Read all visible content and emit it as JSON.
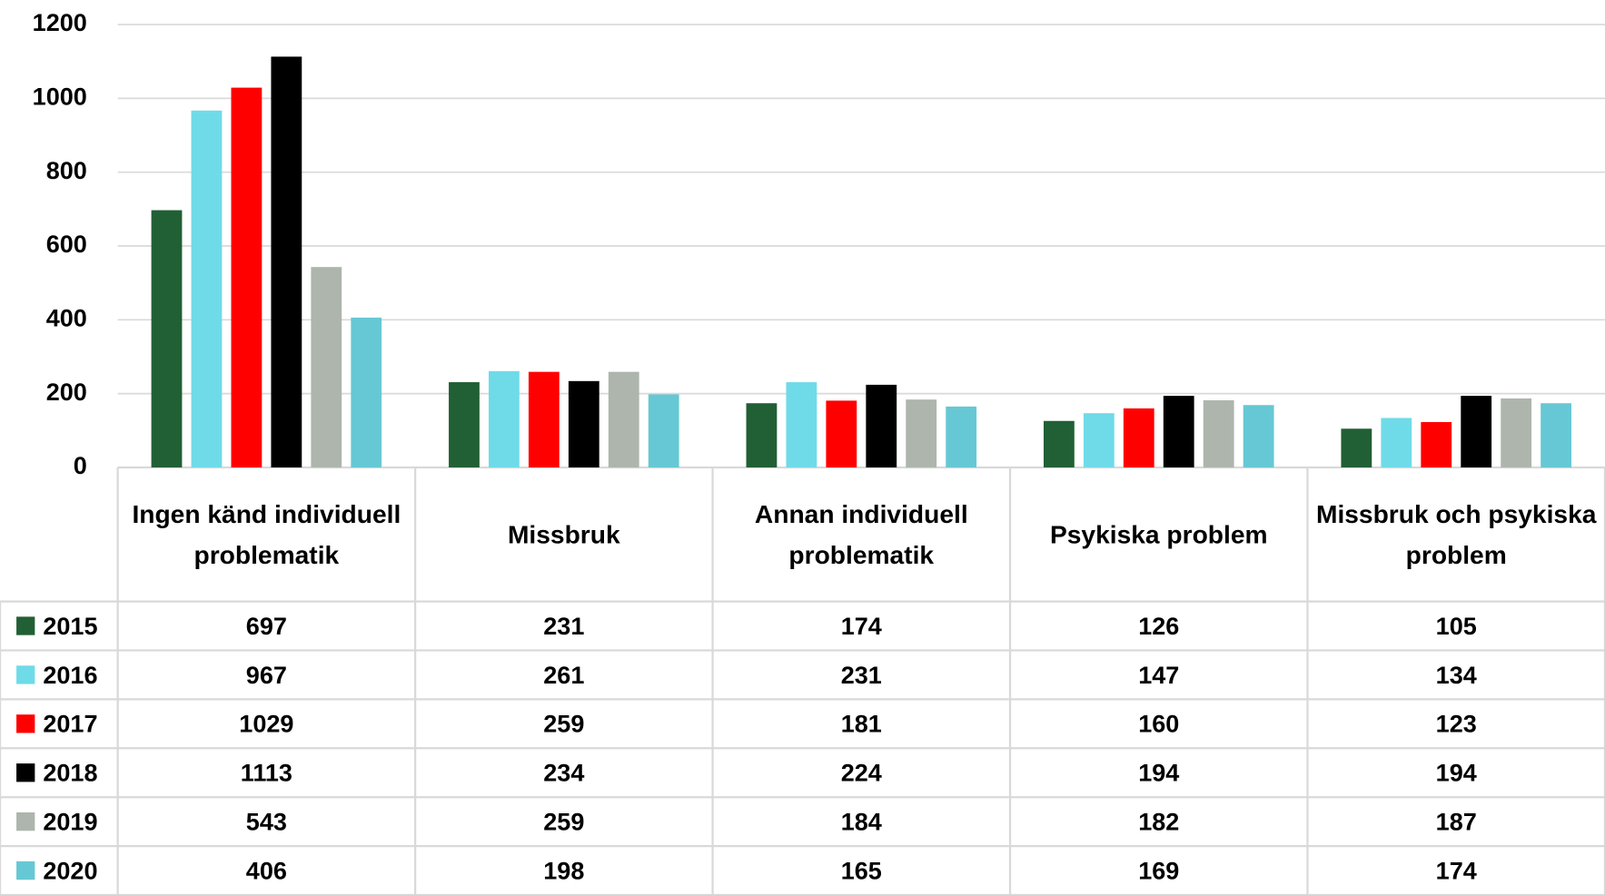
{
  "chart_data": {
    "type": "bar",
    "categories": [
      "Ingen känd individuell problematik",
      "Missbruk",
      "Annan individuell problematik",
      "Psykiska problem",
      "Missbruk och psykiska problem"
    ],
    "series": [
      {
        "name": "2015",
        "color": "#215f35",
        "values": [
          697,
          231,
          174,
          126,
          105
        ]
      },
      {
        "name": "2016",
        "color": "#6fdbe8",
        "values": [
          967,
          261,
          231,
          147,
          134
        ]
      },
      {
        "name": "2017",
        "color": "#ff0000",
        "values": [
          1029,
          259,
          181,
          160,
          123
        ]
      },
      {
        "name": "2018",
        "color": "#000000",
        "values": [
          1113,
          234,
          224,
          194,
          194
        ]
      },
      {
        "name": "2019",
        "color": "#adb5ad",
        "values": [
          543,
          259,
          184,
          182,
          187
        ]
      },
      {
        "name": "2020",
        "color": "#66c8d4",
        "values": [
          406,
          198,
          165,
          169,
          174
        ]
      }
    ],
    "ylim": [
      0,
      1200
    ],
    "yticks": [
      0,
      200,
      400,
      600,
      800,
      1000,
      1200
    ],
    "grid": true
  }
}
